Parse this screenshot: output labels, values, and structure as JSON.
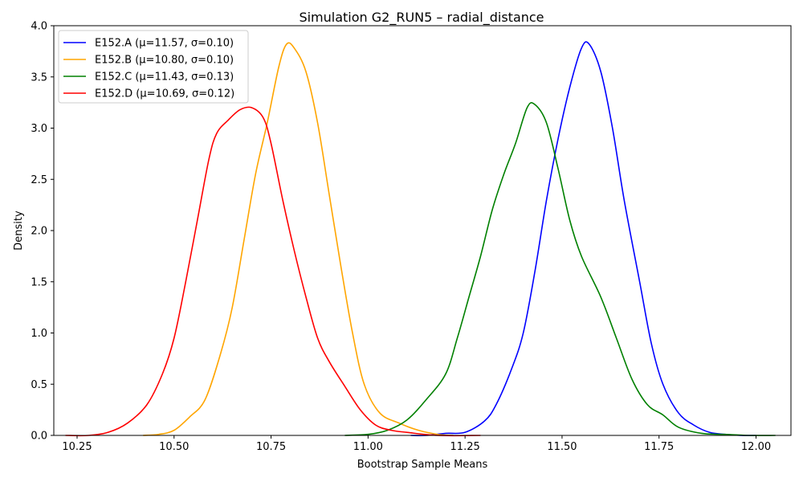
{
  "chart_data": {
    "type": "line",
    "title": "Simulation G2_RUN5 – radial_distance",
    "xlabel": "Bootstrap Sample Means",
    "ylabel": "Density",
    "xlim": [
      10.19,
      12.09
    ],
    "ylim": [
      0,
      4.0
    ],
    "xticks": [
      "10.25",
      "10.50",
      "10.75",
      "11.00",
      "11.25",
      "11.50",
      "11.75",
      "12.00"
    ],
    "yticks": [
      "0.0",
      "0.5",
      "1.0",
      "1.5",
      "2.0",
      "2.5",
      "3.0",
      "3.5",
      "4.0"
    ],
    "grid": false,
    "legend_position": "top-left",
    "series": [
      {
        "name": "E152.A (μ=11.57, σ=0.10)",
        "color": "#0000ff",
        "x": [
          11.11,
          11.15,
          11.2,
          11.25,
          11.3,
          11.33,
          11.37,
          11.4,
          11.43,
          11.46,
          11.49,
          11.52,
          11.55,
          11.57,
          11.6,
          11.63,
          11.66,
          11.7,
          11.73,
          11.76,
          11.8,
          11.84,
          11.88,
          11.92,
          11.96,
          12.0
        ],
        "y": [
          0.0,
          0.0,
          0.02,
          0.03,
          0.14,
          0.3,
          0.65,
          1.0,
          1.6,
          2.3,
          2.9,
          3.4,
          3.78,
          3.82,
          3.55,
          3.0,
          2.3,
          1.5,
          0.9,
          0.5,
          0.22,
          0.1,
          0.03,
          0.01,
          0.0,
          0.0
        ]
      },
      {
        "name": "E152.B (μ=10.80, σ=0.10)",
        "color": "#ffa500",
        "x": [
          10.42,
          10.46,
          10.5,
          10.54,
          10.58,
          10.62,
          10.65,
          10.68,
          10.71,
          10.74,
          10.77,
          10.79,
          10.81,
          10.84,
          10.87,
          10.9,
          10.93,
          10.96,
          10.99,
          11.03,
          11.08,
          11.13,
          11.18,
          11.22
        ],
        "y": [
          0.0,
          0.01,
          0.05,
          0.18,
          0.35,
          0.8,
          1.25,
          1.9,
          2.55,
          3.05,
          3.6,
          3.82,
          3.78,
          3.55,
          3.05,
          2.35,
          1.65,
          1.0,
          0.5,
          0.22,
          0.12,
          0.05,
          0.01,
          0.0
        ]
      },
      {
        "name": "E152.C (μ=11.43, σ=0.13)",
        "color": "#008000",
        "x": [
          10.94,
          11.0,
          11.05,
          11.1,
          11.15,
          11.2,
          11.23,
          11.26,
          11.29,
          11.32,
          11.35,
          11.38,
          11.41,
          11.43,
          11.46,
          11.49,
          11.52,
          11.55,
          11.6,
          11.64,
          11.68,
          11.72,
          11.76,
          11.8,
          11.86,
          11.92,
          11.98,
          12.05
        ],
        "y": [
          0.0,
          0.01,
          0.05,
          0.15,
          0.35,
          0.6,
          0.95,
          1.35,
          1.75,
          2.2,
          2.55,
          2.85,
          3.2,
          3.23,
          3.05,
          2.6,
          2.1,
          1.75,
          1.35,
          0.95,
          0.55,
          0.3,
          0.2,
          0.08,
          0.02,
          0.01,
          0.0,
          0.0
        ]
      },
      {
        "name": "E152.D (μ=10.69, σ=0.12)",
        "color": "#ff0000",
        "x": [
          10.22,
          10.28,
          10.33,
          10.38,
          10.43,
          10.47,
          10.5,
          10.53,
          10.56,
          10.59,
          10.61,
          10.64,
          10.67,
          10.7,
          10.73,
          10.75,
          10.78,
          10.81,
          10.84,
          10.87,
          10.9,
          10.94,
          10.98,
          11.02,
          11.06,
          11.1,
          11.18,
          11.29
        ],
        "y": [
          0.0,
          0.0,
          0.03,
          0.12,
          0.3,
          0.6,
          0.95,
          1.5,
          2.1,
          2.7,
          2.95,
          3.08,
          3.18,
          3.2,
          3.1,
          2.85,
          2.3,
          1.8,
          1.35,
          0.95,
          0.72,
          0.48,
          0.25,
          0.1,
          0.05,
          0.03,
          0.0,
          0.0
        ]
      }
    ]
  }
}
